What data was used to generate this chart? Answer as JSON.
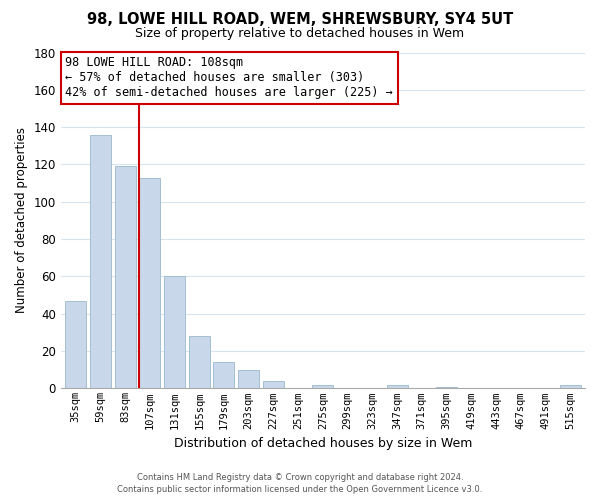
{
  "title": "98, LOWE HILL ROAD, WEM, SHREWSBURY, SY4 5UT",
  "subtitle": "Size of property relative to detached houses in Wem",
  "xlabel": "Distribution of detached houses by size in Wem",
  "ylabel": "Number of detached properties",
  "bar_labels": [
    "35sqm",
    "59sqm",
    "83sqm",
    "107sqm",
    "131sqm",
    "155sqm",
    "179sqm",
    "203sqm",
    "227sqm",
    "251sqm",
    "275sqm",
    "299sqm",
    "323sqm",
    "347sqm",
    "371sqm",
    "395sqm",
    "419sqm",
    "443sqm",
    "467sqm",
    "491sqm",
    "515sqm"
  ],
  "bar_values": [
    47,
    136,
    119,
    113,
    60,
    28,
    14,
    10,
    4,
    0,
    2,
    0,
    0,
    2,
    0,
    1,
    0,
    0,
    0,
    0,
    2
  ],
  "bar_color": "#c8d8ea",
  "bar_edge_color": "#9ab8cc",
  "ylim": [
    0,
    180
  ],
  "yticks": [
    0,
    20,
    40,
    60,
    80,
    100,
    120,
    140,
    160,
    180
  ],
  "grid_color": "#d8e4ee",
  "property_line_index": 3,
  "property_line_color": "#cc0000",
  "annotation_title": "98 LOWE HILL ROAD: 108sqm",
  "annotation_line1": "← 57% of detached houses are smaller (303)",
  "annotation_line2": "42% of semi-detached houses are larger (225) →",
  "annotation_box_color": "#ffffff",
  "annotation_box_edge": "#cc0000",
  "footer_line1": "Contains HM Land Registry data © Crown copyright and database right 2024.",
  "footer_line2": "Contains public sector information licensed under the Open Government Licence v3.0.",
  "background_color": "#ffffff"
}
